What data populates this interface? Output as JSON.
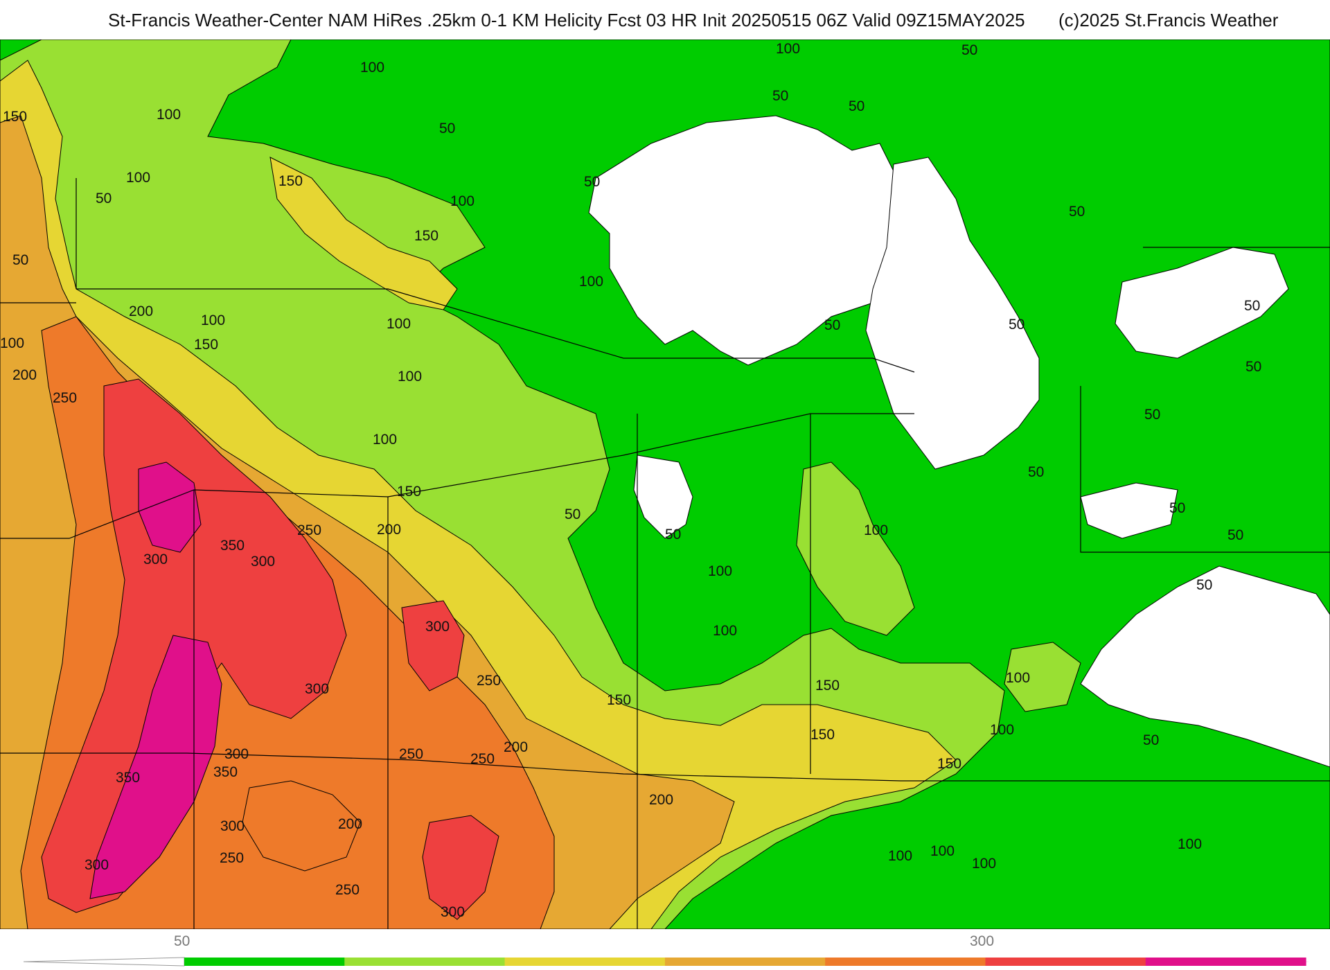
{
  "title": {
    "main": "St-Francis Weather-Center NAM HiRes .25km 0-1 KM Helicity Fcst 03 HR Init 20250515 06Z  Valid 09Z15MAY2025",
    "credit": "(c)2025 St.Francis Weather"
  },
  "colors": {
    "water": "#ffffff",
    "lt50": "#ffffff",
    "b50": "#00cc00",
    "b100": "#99e033",
    "b150": "#e6d633",
    "b200": "#e6a833",
    "b250": "#ee7a2a",
    "b300": "#ee4040",
    "b350": "#e0108a",
    "outline": "#000000"
  },
  "legend": {
    "labels": [
      "50",
      "300"
    ],
    "bands": [
      {
        "color": "#00cc00"
      },
      {
        "color": "#99e033"
      },
      {
        "color": "#e6d633"
      },
      {
        "color": "#e6a833"
      },
      {
        "color": "#ee7a2a"
      },
      {
        "color": "#ee4040"
      },
      {
        "color": "#e0108a"
      }
    ]
  },
  "contour_labels": [
    {
      "text": "50"
    },
    {
      "text": "100"
    },
    {
      "text": "100"
    },
    {
      "text": "50"
    },
    {
      "text": "50"
    },
    {
      "text": "150"
    },
    {
      "text": "100"
    },
    {
      "text": "100"
    },
    {
      "text": "50"
    },
    {
      "text": "50"
    },
    {
      "text": "150"
    },
    {
      "text": "100"
    },
    {
      "text": "50"
    },
    {
      "text": "150"
    },
    {
      "text": "50"
    },
    {
      "text": "50"
    },
    {
      "text": "100"
    },
    {
      "text": "200"
    },
    {
      "text": "100"
    },
    {
      "text": "150"
    },
    {
      "text": "100"
    },
    {
      "text": "100"
    },
    {
      "text": "50"
    },
    {
      "text": "50"
    },
    {
      "text": "50"
    },
    {
      "text": "50"
    },
    {
      "text": "200"
    },
    {
      "text": "250"
    },
    {
      "text": "100"
    },
    {
      "text": "150"
    },
    {
      "text": "50"
    },
    {
      "text": "100"
    },
    {
      "text": "50"
    },
    {
      "text": "50"
    },
    {
      "text": "250"
    },
    {
      "text": "200"
    },
    {
      "text": "50"
    },
    {
      "text": "100"
    },
    {
      "text": "350"
    },
    {
      "text": "300"
    },
    {
      "text": "300"
    },
    {
      "text": "100"
    },
    {
      "text": "50"
    },
    {
      "text": "50"
    },
    {
      "text": "300"
    },
    {
      "text": "50"
    },
    {
      "text": "100"
    },
    {
      "text": "250"
    },
    {
      "text": "300"
    },
    {
      "text": "150"
    },
    {
      "text": "150"
    },
    {
      "text": "100"
    },
    {
      "text": "100"
    },
    {
      "text": "150"
    },
    {
      "text": "50"
    },
    {
      "text": "250"
    },
    {
      "text": "300"
    },
    {
      "text": "350"
    },
    {
      "text": "250"
    },
    {
      "text": "200"
    },
    {
      "text": "150"
    },
    {
      "text": "350"
    },
    {
      "text": "200"
    },
    {
      "text": "200"
    },
    {
      "text": "300"
    },
    {
      "text": "250"
    },
    {
      "text": "300"
    },
    {
      "text": "250"
    },
    {
      "text": "300"
    },
    {
      "text": "100"
    },
    {
      "text": "100"
    },
    {
      "text": "100"
    },
    {
      "text": "100"
    }
  ]
}
